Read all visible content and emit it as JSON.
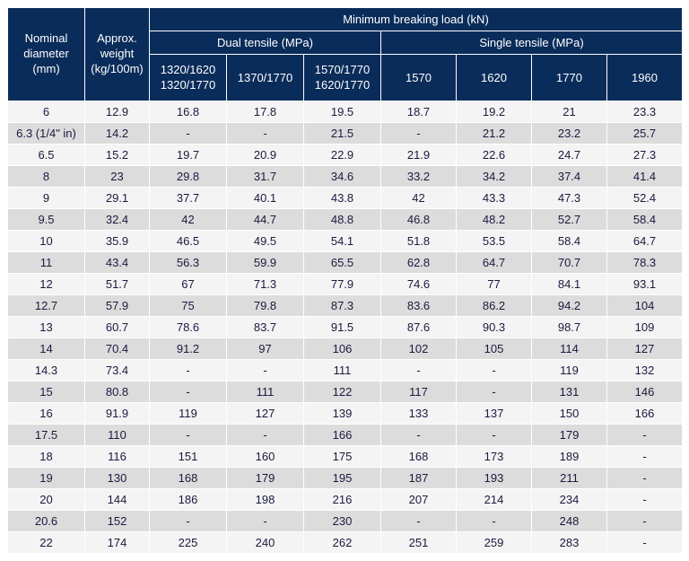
{
  "colors": {
    "header_bg": "#0a2c5a",
    "header_text": "#ffffff",
    "row_even_bg": "#f4f4f4",
    "row_odd_bg": "#dcdcdc",
    "cell_text": "#1a1a40",
    "border": "#ffffff"
  },
  "headers": {
    "nominal_l1": "Nominal",
    "nominal_l2": "diameter",
    "nominal_l3": "(mm)",
    "weight_l1": "Approx.",
    "weight_l2": "weight",
    "weight_l3": "(kg/100m)",
    "mbl": "Minimum breaking load (kN)",
    "dual": "Dual tensile (MPa)",
    "single": "Single tensile (MPa)",
    "d1_l1": "1320/1620",
    "d1_l2": "1320/1770",
    "d2": "1370/1770",
    "d3_l1": "1570/1770",
    "d3_l2": "1620/1770",
    "s1": "1570",
    "s2": "1620",
    "s3": "1770",
    "s4": "1960"
  },
  "rows": [
    [
      "6",
      "12.9",
      "16.8",
      "17.8",
      "19.5",
      "18.7",
      "19.2",
      "21",
      "23.3"
    ],
    [
      "6.3 (1/4\" in)",
      "14.2",
      "-",
      "-",
      "21.5",
      "-",
      "21.2",
      "23.2",
      "25.7"
    ],
    [
      "6.5",
      "15.2",
      "19.7",
      "20.9",
      "22.9",
      "21.9",
      "22.6",
      "24.7",
      "27.3"
    ],
    [
      "8",
      "23",
      "29.8",
      "31.7",
      "34.6",
      "33.2",
      "34.2",
      "37.4",
      "41.4"
    ],
    [
      "9",
      "29.1",
      "37.7",
      "40.1",
      "43.8",
      "42",
      "43.3",
      "47.3",
      "52.4"
    ],
    [
      "9.5",
      "32.4",
      "42",
      "44.7",
      "48.8",
      "46.8",
      "48.2",
      "52.7",
      "58.4"
    ],
    [
      "10",
      "35.9",
      "46.5",
      "49.5",
      "54.1",
      "51.8",
      "53.5",
      "58.4",
      "64.7"
    ],
    [
      "11",
      "43.4",
      "56.3",
      "59.9",
      "65.5",
      "62.8",
      "64.7",
      "70.7",
      "78.3"
    ],
    [
      "12",
      "51.7",
      "67",
      "71.3",
      "77.9",
      "74.6",
      "77",
      "84.1",
      "93.1"
    ],
    [
      "12.7",
      "57.9",
      "75",
      "79.8",
      "87.3",
      "83.6",
      "86.2",
      "94.2",
      "104"
    ],
    [
      "13",
      "60.7",
      "78.6",
      "83.7",
      "91.5",
      "87.6",
      "90.3",
      "98.7",
      "109"
    ],
    [
      "14",
      "70.4",
      "91.2",
      "97",
      "106",
      "102",
      "105",
      "114",
      "127"
    ],
    [
      "14.3",
      "73.4",
      "-",
      "-",
      "111",
      "-",
      "-",
      "119",
      "132"
    ],
    [
      "15",
      "80.8",
      "-",
      "111",
      "122",
      "117",
      "-",
      "131",
      "146"
    ],
    [
      "16",
      "91.9",
      "119",
      "127",
      "139",
      "133",
      "137",
      "150",
      "166"
    ],
    [
      "17.5",
      "110",
      "-",
      "-",
      "166",
      "-",
      "-",
      "179",
      "-"
    ],
    [
      "18",
      "116",
      "151",
      "160",
      "175",
      "168",
      "173",
      "189",
      "-"
    ],
    [
      "19",
      "130",
      "168",
      "179",
      "195",
      "187",
      "193",
      "211",
      "-"
    ],
    [
      "20",
      "144",
      "186",
      "198",
      "216",
      "207",
      "214",
      "234",
      "-"
    ],
    [
      "20.6",
      "152",
      "-",
      "-",
      "230",
      "-",
      "-",
      "248",
      "-"
    ],
    [
      "22",
      "174",
      "225",
      "240",
      "262",
      "251",
      "259",
      "283",
      "-"
    ]
  ]
}
